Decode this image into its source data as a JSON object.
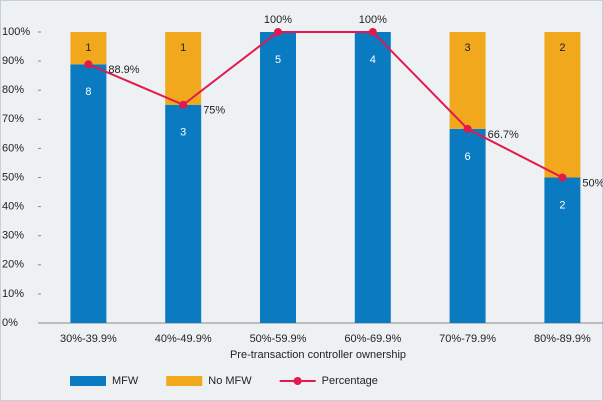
{
  "chart_data": {
    "type": "bar",
    "x_label": "Pre-transaction controller ownership",
    "categories": [
      "30%-39.9%",
      "40%-49.9%",
      "50%-59.9%",
      "60%-69.9%",
      "70%-79.9%",
      "80%-89.9%"
    ],
    "series": [
      {
        "name": "MFW",
        "color": "#0b7bc1",
        "values": [
          88.9,
          75,
          100,
          100,
          66.7,
          50
        ],
        "counts": [
          8,
          3,
          5,
          4,
          6,
          2
        ]
      },
      {
        "name": "No MFW",
        "color": "#f2a81d",
        "values": [
          11.1,
          25,
          0,
          0,
          33.3,
          50
        ],
        "counts": [
          1,
          1,
          null,
          null,
          3,
          2
        ]
      },
      {
        "name": "Percentage",
        "type": "line",
        "color": "#e3184c",
        "values": [
          88.9,
          75,
          100,
          100,
          66.7,
          50
        ],
        "value_labels": [
          "88.9%",
          "75%",
          "100%",
          "100%",
          "66.7%",
          "50%"
        ]
      }
    ],
    "ylim": [
      0,
      100
    ],
    "yticks": [
      {
        "value": 0,
        "label": "0%"
      },
      {
        "value": 10,
        "label": "10%"
      },
      {
        "value": 20,
        "label": "20%"
      },
      {
        "value": 30,
        "label": "30%"
      },
      {
        "value": 40,
        "label": "40%"
      },
      {
        "value": 50,
        "label": "50%"
      },
      {
        "value": 60,
        "label": "60%"
      },
      {
        "value": 70,
        "label": "70%"
      },
      {
        "value": 80,
        "label": "80%"
      },
      {
        "value": 90,
        "label": "90%"
      },
      {
        "value": 100,
        "label": "100%"
      }
    ],
    "legend": "bottom"
  }
}
